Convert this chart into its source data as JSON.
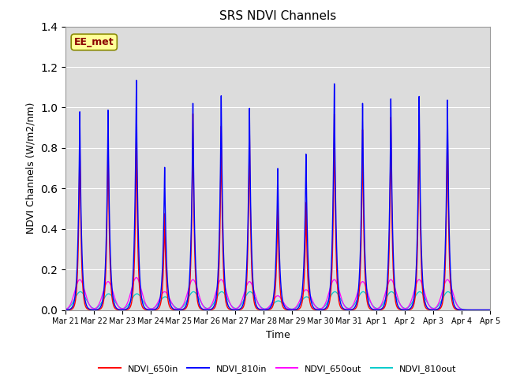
{
  "title": "SRS NDVI Channels",
  "xlabel": "Time",
  "ylabel": "NDVI Channels (W/m2/nm)",
  "ylim": [
    0,
    1.4
  ],
  "yticks": [
    0.0,
    0.2,
    0.4,
    0.6,
    0.8,
    1.0,
    1.2,
    1.4
  ],
  "xtick_labels": [
    "Mar 21",
    "Mar 22",
    "Mar 23",
    "Mar 24",
    "Mar 25",
    "Mar 26",
    "Mar 27",
    "Mar 28",
    "Mar 29",
    "Mar 30",
    "Mar 31",
    "Apr 1",
    "Apr 2",
    "Apr 3",
    "Apr 4",
    "Apr 5"
  ],
  "annotation_text": "EE_met",
  "annotation_color": "#8B0000",
  "annotation_bg": "#FFFF99",
  "bg_color": "#DCDCDC",
  "legend_entries": [
    "NDVI_650in",
    "NDVI_810in",
    "NDVI_650out",
    "NDVI_810out"
  ],
  "line_colors": [
    "#FF0000",
    "#0000FF",
    "#FF00FF",
    "#00CCCC"
  ],
  "peak_heights_810in": [
    0.98,
    0.99,
    1.14,
    0.71,
    1.03,
    1.07,
    1.01,
    0.71,
    0.78,
    1.13,
    1.03,
    1.05,
    1.06,
    1.04,
    0.0
  ],
  "peak_heights_650in": [
    0.88,
    0.9,
    0.91,
    0.48,
    0.98,
    0.92,
    0.93,
    0.54,
    0.54,
    0.98,
    0.9,
    0.96,
    0.97,
    0.96,
    0.0
  ],
  "peak_heights_650out": [
    0.15,
    0.14,
    0.16,
    0.09,
    0.15,
    0.15,
    0.14,
    0.07,
    0.1,
    0.15,
    0.14,
    0.15,
    0.15,
    0.15,
    0.0
  ],
  "peak_heights_810out": [
    0.09,
    0.08,
    0.08,
    0.065,
    0.09,
    0.09,
    0.09,
    0.045,
    0.065,
    0.09,
    0.09,
    0.09,
    0.09,
    0.09,
    0.0
  ],
  "n_days": 15,
  "points_per_day": 500
}
